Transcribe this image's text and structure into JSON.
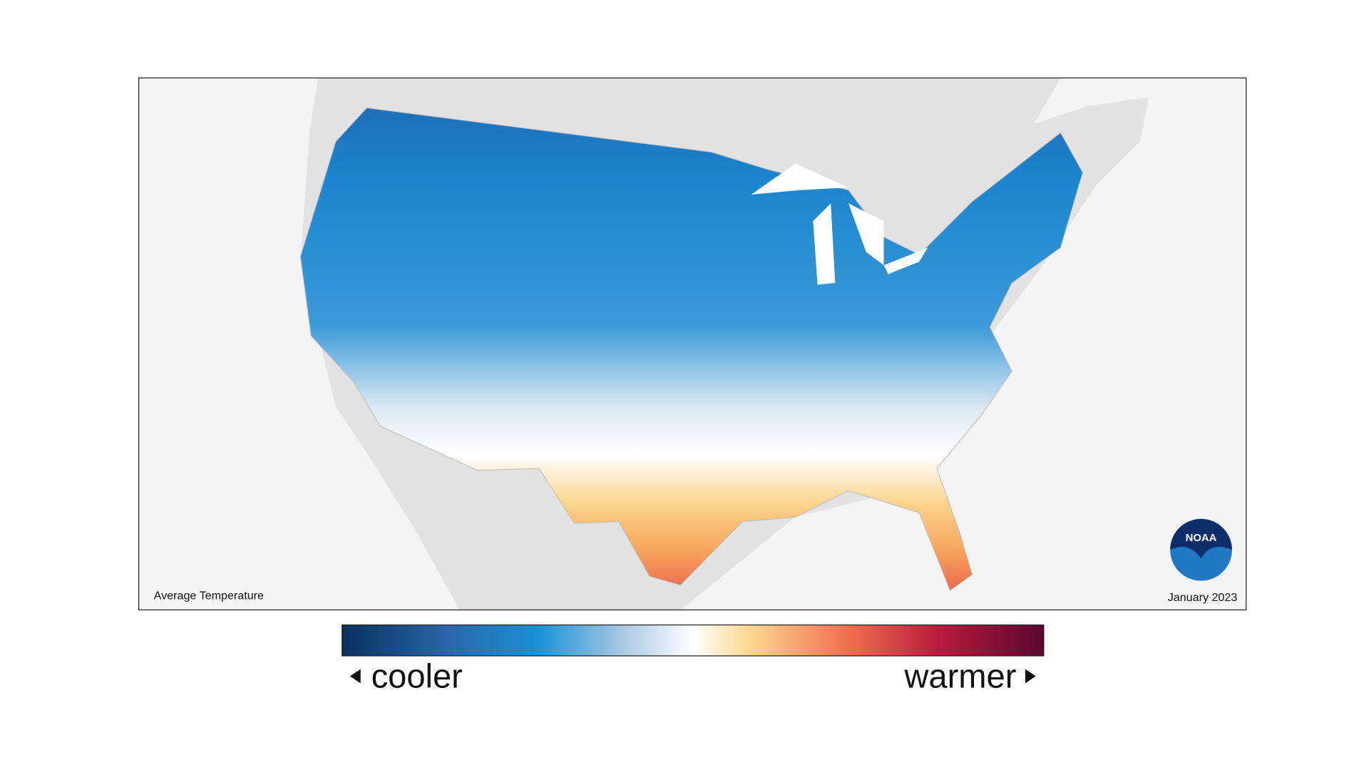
{
  "map": {
    "title": "Average Temperature",
    "date": "January 2023"
  },
  "legend": {
    "low_label": "cooler",
    "high_label": "warmer"
  },
  "logo": {
    "text": "NOAA"
  }
}
